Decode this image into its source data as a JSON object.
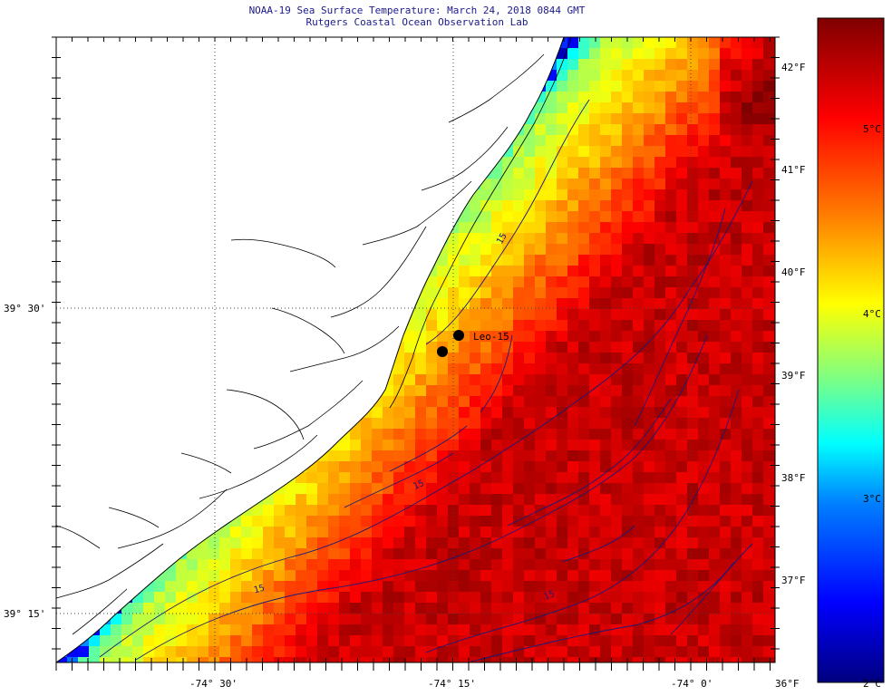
{
  "header": {
    "title_line1": "NOAA-19 Sea Surface Temperature:  March 24, 2018 0844 GMT",
    "title_line2": "Rutgers Coastal Ocean Observation Lab"
  },
  "map": {
    "lat_labels": [
      "39° 30'",
      "39° 15'"
    ],
    "lon_labels": [
      "-74° 30'",
      "-74° 15'",
      "-74° 0'"
    ],
    "station_label": "Leo-15",
    "contour_labels": [
      "15",
      "15",
      "15",
      "15"
    ],
    "colors": {
      "land": "#ffffff",
      "coast": "#000000",
      "contour": "#1a1a7a",
      "title": "#1a1a8c"
    }
  },
  "colorbar": {
    "fahrenheit_labels": [
      "42°F",
      "41°F",
      "40°F",
      "39°F",
      "38°F",
      "37°F",
      "36°F"
    ],
    "celsius_labels": [
      "5°C",
      "4°C",
      "3°C",
      "2°C"
    ],
    "range_celsius": [
      2,
      5.6
    ],
    "scale_colors": [
      "#00007f",
      "#0000ff",
      "#0080ff",
      "#00ffff",
      "#80ff80",
      "#ffff00",
      "#ff8000",
      "#ff0000",
      "#7f0000"
    ]
  }
}
